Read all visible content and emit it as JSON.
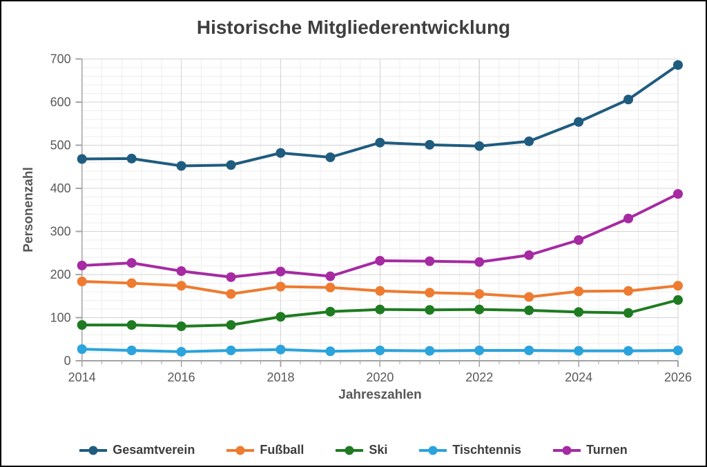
{
  "chart_data": {
    "type": "line",
    "title": "Historische Mitgliederentwicklung",
    "xlabel": "Jahreszahlen",
    "ylabel": "Personenzahl",
    "x": [
      2014,
      2015,
      2016,
      2017,
      2018,
      2019,
      2020,
      2021,
      2022,
      2023,
      2024,
      2025,
      2026
    ],
    "x_major_ticks": [
      2014,
      2016,
      2018,
      2020,
      2022,
      2024,
      2026
    ],
    "x_minor_step": 0.4,
    "ylim": [
      0,
      700
    ],
    "y_major_ticks": [
      0,
      100,
      200,
      300,
      400,
      500,
      600,
      700
    ],
    "y_minor_step": 20,
    "grid": "major and minor gridlines, light gray",
    "legend_position": "bottom",
    "series": [
      {
        "name": "Gesamtverein",
        "color": "#1F5C7F",
        "values": [
          468,
          469,
          452,
          454,
          482,
          472,
          506,
          501,
          498,
          509,
          554,
          606,
          686
        ]
      },
      {
        "name": "Fußball",
        "color": "#EE7B30",
        "values": [
          184,
          180,
          174,
          155,
          172,
          170,
          162,
          158,
          155,
          148,
          161,
          162,
          174
        ]
      },
      {
        "name": "Ski",
        "color": "#1E7B21",
        "values": [
          83,
          83,
          80,
          83,
          102,
          114,
          119,
          118,
          119,
          117,
          113,
          111,
          141
        ]
      },
      {
        "name": "Tischtennis",
        "color": "#2BA3DC",
        "values": [
          27,
          24,
          21,
          24,
          26,
          22,
          24,
          23,
          24,
          24,
          23,
          23,
          24
        ]
      },
      {
        "name": "Turnen",
        "color": "#A62AA2",
        "values": [
          221,
          227,
          208,
          194,
          207,
          196,
          232,
          231,
          229,
          245,
          280,
          330,
          387
        ]
      }
    ],
    "colors": {
      "title_text": "#3f3f3f",
      "axis_text": "#595959",
      "axis_line": "#a3a3a3",
      "grid_major": "#d3d3d3",
      "grid_minor": "#ededed"
    }
  }
}
